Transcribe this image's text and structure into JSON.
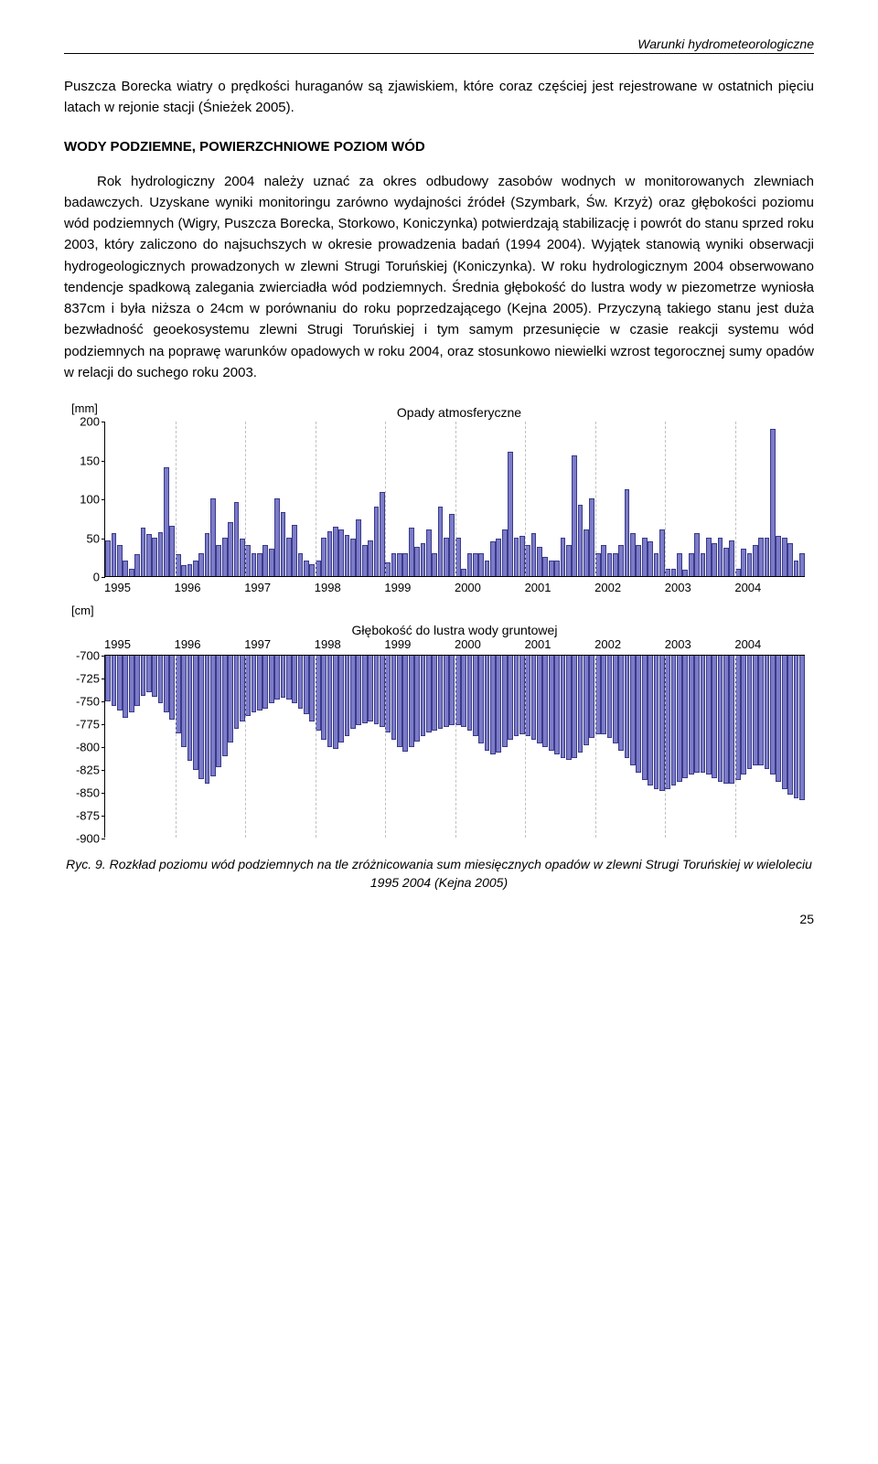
{
  "header": {
    "running_title": "Warunki hydrometeorologiczne"
  },
  "paragraphs": {
    "p1": "Puszcza Borecka wiatry o prędkości huraganów są zjawiskiem, które coraz częściej jest rejestrowane w ostatnich pięciu latach w rejonie stacji (Śnieżek 2005).",
    "p2_title": "WODY PODZIEMNE, POWIERZCHNIOWE POZIOM WÓD",
    "p3": "Rok hydrologiczny 2004 należy uznać za okres odbudowy zasobów wodnych w monitorowanych zlewniach badawczych. Uzyskane wyniki monitoringu zarówno wydajności źródeł (Szymbark, Św. Krzyż) oraz głębokości poziomu wód podziemnych (Wigry, Puszcza Borecka, Storkowo, Koniczynka) potwierdzają stabilizację i powrót do stanu sprzed roku 2003, który zaliczono do najsuchszych w okresie prowadzenia badań (1994 2004). Wyjątek stanowią wyniki obserwacji hydrogeologicznych prowadzonych w zlewni Strugi Toruńskiej (Koniczynka). W roku hydrologicznym 2004 obserwowano tendencje spadkową zalegania zwierciadła wód podziemnych. Średnia głębokość do lustra wody w piezometrze wyniosła 837cm i była niższa o 24cm w porównaniu do roku poprzedzającego (Kejna 2005). Przyczyną takiego stanu jest duża bezwładność geoekosystemu zlewni Strugi Toruńskiej i tym samym przesunięcie w czasie reakcji systemu wód podziemnych na poprawę warunków opadowych w roku 2004, oraz stosunkowo niewielki wzrost tegorocznej sumy opadów w relacji do suchego roku 2003."
  },
  "chart1": {
    "type": "bar",
    "title": "Opady atmosferyczne",
    "ylabel": "[mm]",
    "ylim": [
      0,
      200
    ],
    "yticks": [
      0,
      50,
      100,
      150,
      200
    ],
    "xlabels": [
      "1995",
      "1996",
      "1997",
      "1998",
      "1999",
      "2000",
      "2001",
      "2002",
      "2003",
      "2004"
    ],
    "bar_fill": "#7b7bc8",
    "bar_border": "#3a3a8a",
    "grid_dash_color": "#c0c0c0",
    "background_color": "#ffffff",
    "values": [
      46,
      55,
      40,
      20,
      10,
      28,
      62,
      54,
      50,
      56,
      140,
      65,
      28,
      14,
      15,
      20,
      30,
      55,
      100,
      40,
      50,
      70,
      95,
      48,
      40,
      30,
      30,
      40,
      35,
      100,
      82,
      50,
      66,
      30,
      20,
      15,
      20,
      50,
      58,
      64,
      60,
      53,
      48,
      73,
      40,
      46,
      90,
      108,
      18,
      30,
      30,
      30,
      62,
      38,
      42,
      60,
      30,
      90,
      50,
      80,
      50,
      10,
      30,
      30,
      30,
      20,
      45,
      48,
      60,
      160,
      50,
      52,
      40,
      55,
      38,
      25,
      20,
      20,
      50,
      40,
      155,
      92,
      60,
      100,
      30,
      40,
      30,
      30,
      40,
      112,
      55,
      40,
      50,
      45,
      30,
      60,
      10,
      10,
      30,
      8,
      30,
      55,
      30,
      50,
      42,
      50,
      36,
      46,
      10,
      35,
      30,
      40,
      50,
      50,
      190,
      52,
      50,
      42,
      20,
      30
    ]
  },
  "chart2": {
    "type": "bar",
    "title": "Głębokość do lustra wody gruntowej",
    "ylabel": "[cm]",
    "ylim": [
      -900,
      -700
    ],
    "yticks": [
      -700,
      -725,
      -750,
      -775,
      -800,
      -825,
      -850,
      -875,
      -900
    ],
    "xlabels": [
      "1995",
      "1996",
      "1997",
      "1998",
      "1999",
      "2000",
      "2001",
      "2002",
      "2003",
      "2004"
    ],
    "bar_fill": "#7b7bc8",
    "bar_border": "#3a3a8a",
    "grid_dash_color": "#c0c0c0",
    "background_color": "#ffffff",
    "values": [
      -750,
      -755,
      -760,
      -768,
      -762,
      -755,
      -744,
      -740,
      -745,
      -752,
      -762,
      -770,
      -785,
      -800,
      -815,
      -825,
      -835,
      -840,
      -832,
      -822,
      -810,
      -795,
      -780,
      -772,
      -766,
      -762,
      -760,
      -758,
      -752,
      -748,
      -746,
      -748,
      -752,
      -758,
      -764,
      -772,
      -782,
      -792,
      -800,
      -802,
      -795,
      -788,
      -780,
      -776,
      -774,
      -772,
      -775,
      -778,
      -784,
      -792,
      -800,
      -805,
      -800,
      -794,
      -788,
      -784,
      -782,
      -780,
      -778,
      -776,
      -776,
      -778,
      -782,
      -788,
      -796,
      -804,
      -808,
      -806,
      -800,
      -792,
      -788,
      -786,
      -788,
      -792,
      -796,
      -800,
      -804,
      -808,
      -812,
      -814,
      -812,
      -806,
      -798,
      -790,
      -786,
      -786,
      -790,
      -796,
      -804,
      -812,
      -820,
      -828,
      -836,
      -842,
      -846,
      -848,
      -846,
      -842,
      -838,
      -834,
      -830,
      -828,
      -828,
      -830,
      -834,
      -838,
      -840,
      -840,
      -836,
      -830,
      -824,
      -820,
      -820,
      -824,
      -830,
      -838,
      -846,
      -852,
      -856,
      -858
    ]
  },
  "caption": {
    "prefix": "Ryc. 9. ",
    "text": "Rozkład poziomu wód podziemnych na tle zróżnicowania sum miesięcznych opadów w zlewni Strugi Toruńskiej w wieloleciu 1995 2004 (Kejna 2005)"
  },
  "page_number": "25"
}
